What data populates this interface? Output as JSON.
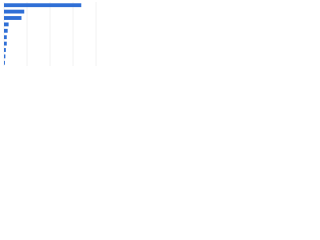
{
  "chart_data": {
    "type": "hbar",
    "categories": [
      null,
      null,
      null,
      null,
      null,
      null,
      null,
      null,
      null,
      null
    ],
    "values": [
      84,
      22,
      19,
      5,
      4,
      3,
      3,
      2,
      1.5,
      1
    ],
    "color": "#2f6fd6",
    "xlim": [
      0,
      100
    ],
    "xticks": [
      0,
      25,
      50,
      75,
      100
    ],
    "grid": true
  }
}
